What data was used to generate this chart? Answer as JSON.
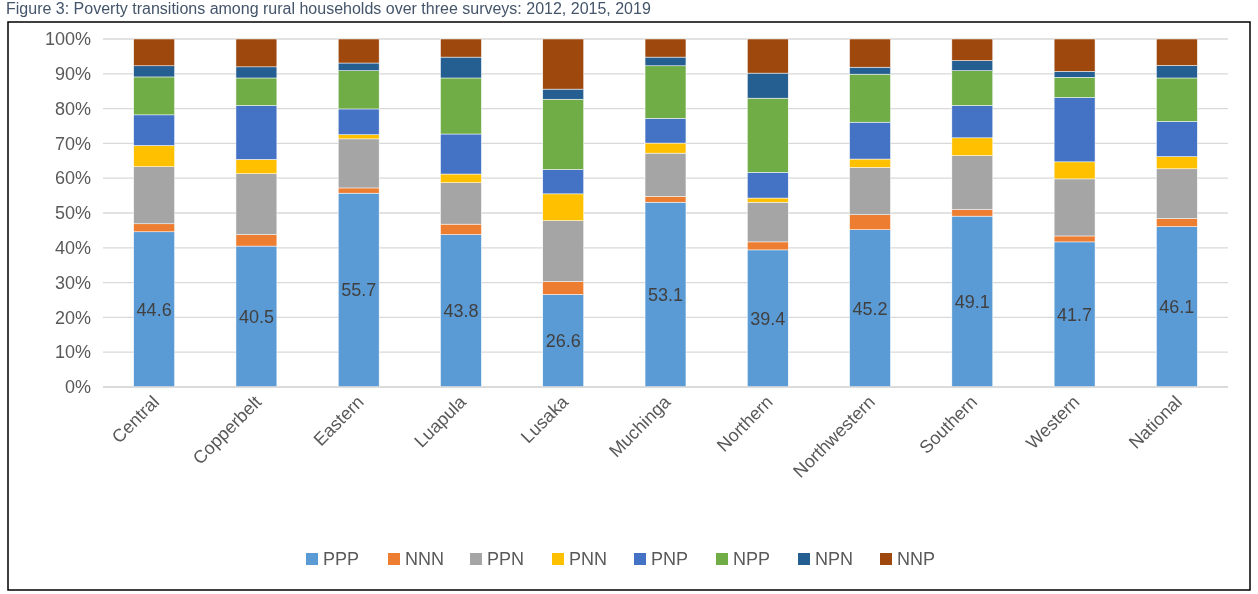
{
  "chart_data": {
    "type": "bar",
    "stacked": true,
    "title": "Figure 3: Poverty transitions among rural households over three surveys: 2012, 2015, 2019",
    "categories": [
      "Central",
      "Copperbelt",
      "Eastern",
      "Luapula",
      "Lusaka",
      "Muchinga",
      "Northern",
      "Northwestern",
      "Southern",
      "Western",
      "National"
    ],
    "ylim": [
      0,
      100
    ],
    "yticks": [
      {
        "value": 0,
        "label": "0%"
      },
      {
        "value": 10,
        "label": "10%"
      },
      {
        "value": 20,
        "label": "20%"
      },
      {
        "value": 30,
        "label": "30%"
      },
      {
        "value": 40,
        "label": "40%"
      },
      {
        "value": 50,
        "label": "50%"
      },
      {
        "value": 60,
        "label": "60%"
      },
      {
        "value": 70,
        "label": "70%"
      },
      {
        "value": 80,
        "label": "80%"
      },
      {
        "value": 90,
        "label": "90%"
      },
      {
        "value": 100,
        "label": "100%"
      }
    ],
    "grid": "y",
    "legend": "bottom",
    "series": [
      {
        "name": "PPP",
        "color": "#5b9bd5",
        "values": [
          44.6,
          40.5,
          55.7,
          43.8,
          26.6,
          53.1,
          39.4,
          45.2,
          49.1,
          41.7,
          46.1
        ],
        "value_labels": [
          "44.6",
          "40.5",
          "55.7",
          "43.8",
          "26.6",
          "53.1",
          "39.4",
          "45.2",
          "49.1",
          "41.7",
          "46.1"
        ]
      },
      {
        "name": "NNN",
        "color": "#ed7d31",
        "values": [
          2.3,
          3.3,
          1.5,
          3.0,
          3.7,
          1.7,
          2.3,
          4.3,
          1.9,
          1.7,
          2.3
        ]
      },
      {
        "name": "PPN",
        "color": "#a5a5a5",
        "values": [
          16.4,
          17.5,
          14.1,
          11.9,
          17.5,
          12.4,
          11.4,
          13.6,
          15.5,
          16.4,
          14.3
        ]
      },
      {
        "name": "PNN",
        "color": "#ffc000",
        "values": [
          6.1,
          4.1,
          1.2,
          2.5,
          7.7,
          2.9,
          1.2,
          2.4,
          5.1,
          4.9,
          3.5
        ]
      },
      {
        "name": "PNP",
        "color": "#4472c4",
        "values": [
          8.8,
          15.5,
          7.4,
          11.5,
          7.0,
          7.1,
          7.4,
          10.6,
          9.3,
          18.5,
          10.1
        ]
      },
      {
        "name": "NPP",
        "color": "#70ad47",
        "values": [
          10.9,
          7.9,
          11.0,
          16.1,
          20.2,
          15.1,
          21.3,
          13.8,
          10.0,
          5.8,
          12.5
        ]
      },
      {
        "name": "NPN",
        "color": "#255e91",
        "values": [
          3.2,
          3.2,
          2.2,
          6.0,
          2.9,
          2.5,
          7.2,
          2.0,
          2.9,
          1.7,
          3.6
        ]
      },
      {
        "name": "NNP",
        "color": "#9e480e",
        "values": [
          7.7,
          8.0,
          6.9,
          5.2,
          14.4,
          5.2,
          9.8,
          8.1,
          6.2,
          9.3,
          7.6
        ]
      }
    ]
  }
}
